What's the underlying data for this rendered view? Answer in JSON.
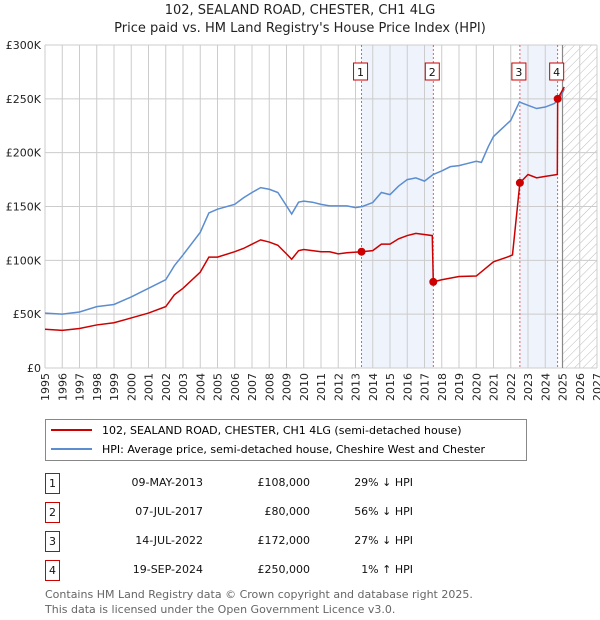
{
  "title_line1": "102, SEALAND ROAD, CHESTER, CH1 4LG",
  "title_line2": "Price paid vs. HM Land Registry's House Price Index (HPI)",
  "chart_data": {
    "type": "line",
    "title": "102, SEALAND ROAD, CHESTER, CH1 4LG - Price paid vs. HM Land Registry's House Price Index (HPI)",
    "xlim": [
      1995,
      2027
    ],
    "ylim": [
      0,
      300000
    ],
    "x_ticks": [
      "1995",
      "1996",
      "1997",
      "1998",
      "1999",
      "2000",
      "2001",
      "2002",
      "2003",
      "2004",
      "2005",
      "2006",
      "2007",
      "2008",
      "2009",
      "2010",
      "2011",
      "2012",
      "2013",
      "2014",
      "2015",
      "2016",
      "2017",
      "2018",
      "2019",
      "2020",
      "2021",
      "2022",
      "2023",
      "2024",
      "2025",
      "2026",
      "2027"
    ],
    "y_ticks": [
      {
        "v": 0,
        "label": "£0"
      },
      {
        "v": 50000,
        "label": "£50K"
      },
      {
        "v": 100000,
        "label": "£100K"
      },
      {
        "v": 150000,
        "label": "£150K"
      },
      {
        "v": 200000,
        "label": "£200K"
      },
      {
        "v": 250000,
        "label": "£250K"
      },
      {
        "v": 300000,
        "label": "£300K"
      }
    ],
    "grid": true,
    "projection_start": 2025,
    "shaded_ranges": [
      [
        2013.35,
        2017.51
      ],
      [
        2022.53,
        2024.72
      ]
    ],
    "series": [
      {
        "name": "102, SEALAND ROAD, CHESTER, CH1 4LG (semi-detached house)",
        "color": "#cc0000",
        "x": [
          1995,
          1996,
          1997,
          1998,
          1999,
          2000,
          2001,
          2002,
          2002.5,
          2003,
          2004,
          2004.5,
          2005,
          2006,
          2006.5,
          2007,
          2007.5,
          2008,
          2008.5,
          2009,
          2009.3,
          2009.7,
          2010,
          2011,
          2011.5,
          2012,
          2012.5,
          2013.35,
          2014,
          2014.5,
          2015,
          2015.5,
          2016,
          2016.5,
          2017.45,
          2017.51,
          2018,
          2019,
          2020,
          2020.5,
          2021,
          2021.8,
          2022.1,
          2022.53,
          2023,
          2023.5,
          2024,
          2024.7,
          2024.72,
          2025.1
        ],
        "y": [
          36000,
          35000,
          36700,
          40000,
          42000,
          46500,
          51000,
          57000,
          68000,
          74000,
          89000,
          103000,
          103000,
          108000,
          111000,
          115000,
          119000,
          117000,
          114000,
          106000,
          101000,
          109000,
          110000,
          108000,
          108000,
          106000,
          107000,
          108000,
          109000,
          115000,
          115000,
          120000,
          123000,
          125000,
          123000,
          80000,
          82000,
          85000,
          85400,
          92000,
          98600,
          103000,
          105000,
          172000,
          179700,
          176600,
          178000,
          179700,
          250000,
          261000
        ]
      },
      {
        "name": "HPI: Average price, semi-detached house, Cheshire West and Chester",
        "color": "#5b8dd0",
        "x": [
          1995,
          1996,
          1997,
          1998,
          1999,
          2000,
          2001,
          2002,
          2002.5,
          2003,
          2004,
          2004.5,
          2005,
          2006,
          2006.5,
          2007,
          2007.5,
          2008,
          2008.5,
          2009,
          2009.3,
          2009.7,
          2010,
          2010.5,
          2011,
          2011.5,
          2012,
          2012.5,
          2013,
          2013.4,
          2014,
          2014.5,
          2015,
          2015.5,
          2016,
          2016.5,
          2017,
          2017.5,
          2018,
          2018.5,
          2019,
          2019.5,
          2020,
          2020.3,
          2020.7,
          2021,
          2021.5,
          2022,
          2022.5,
          2023,
          2023.5,
          2024,
          2024.5,
          2024.8,
          2025.1
        ],
        "y": [
          51000,
          50000,
          52000,
          57000,
          59000,
          66000,
          74000,
          82000,
          95000,
          105000,
          126000,
          144000,
          147500,
          152000,
          158000,
          163000,
          167500,
          166000,
          163000,
          150600,
          143000,
          154000,
          155000,
          154000,
          152000,
          150600,
          150600,
          150600,
          149000,
          150000,
          153700,
          163000,
          161000,
          169000,
          175000,
          176600,
          173600,
          179700,
          183000,
          187000,
          188000,
          190000,
          192000,
          191000,
          205700,
          215000,
          222500,
          230000,
          247000,
          244000,
          241000,
          242400,
          245500,
          249000,
          259000
        ]
      }
    ],
    "sales": [
      {
        "n": "1",
        "x": 2013.35,
        "y": 108000
      },
      {
        "n": "2",
        "x": 2017.51,
        "y": 80000
      },
      {
        "n": "3",
        "x": 2022.53,
        "y": 172000
      },
      {
        "n": "4",
        "x": 2024.72,
        "y": 250000
      }
    ]
  },
  "legend": {
    "items": [
      {
        "label": "102, SEALAND ROAD, CHESTER, CH1 4LG (semi-detached house)",
        "color": "#cc0000"
      },
      {
        "label": "HPI: Average price, semi-detached house, Cheshire West and Chester",
        "color": "#5b8dd0"
      }
    ]
  },
  "table": [
    {
      "n": "1",
      "date": "09-MAY-2013",
      "price": "£108,000",
      "hpi": "29% ↓ HPI"
    },
    {
      "n": "2",
      "date": "07-JUL-2017",
      "price": "£80,000",
      "hpi": "56% ↓ HPI"
    },
    {
      "n": "3",
      "date": "14-JUL-2022",
      "price": "£172,000",
      "hpi": "27% ↓ HPI"
    },
    {
      "n": "4",
      "date": "19-SEP-2024",
      "price": "£250,000",
      "hpi": "1% ↑ HPI"
    }
  ],
  "footer": {
    "line1": "Contains HM Land Registry data © Crown copyright and database right 2025.",
    "line2": "This data is licensed under the Open Government Licence v3.0."
  }
}
